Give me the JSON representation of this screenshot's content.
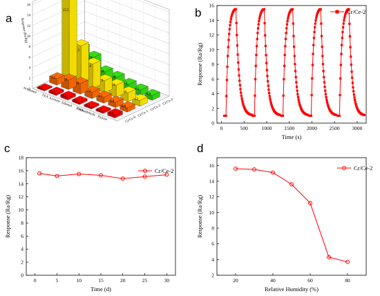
{
  "panels": {
    "a": {
      "letter": "a"
    },
    "b": {
      "letter": "b"
    },
    "c": {
      "letter": "c"
    },
    "d": {
      "letter": "d"
    }
  },
  "colors": {
    "red": "#ff0000",
    "orange": "#ff6a00",
    "yellow": "#ffe600",
    "green": "#33dd11"
  },
  "chart_data": [
    {
      "id": "a",
      "type": "bar",
      "subtype": "3d-bar",
      "zlabel": "Response (Ra/Rg)",
      "zlim": [
        0,
        16
      ],
      "zticks": [
        "0",
        "2",
        "4",
        "6",
        "8",
        "10",
        "12",
        "14",
        "16"
      ],
      "categories": [
        "N-butanol",
        "TEA",
        "Acetone",
        "Ethanol",
        "TMA",
        "Formaldehyde",
        "Xylene"
      ],
      "series": [
        {
          "name": "Cr/Ce-0",
          "color": "red",
          "values": [
            0.2,
            0.4,
            0.5,
            0.4,
            0.3,
            0.3,
            0.6
          ]
        },
        {
          "name": "Cr/Ce-1",
          "color": "orange",
          "values": [
            1.2,
            1.8,
            2.0,
            1.2,
            1.1,
            1.0,
            0.8
          ]
        },
        {
          "name": "Cr/Ce-2",
          "color": "yellow",
          "values": [
            15.5,
            7.2,
            4.6,
            2.3,
            2.3,
            1.7,
            1.1
          ]
        },
        {
          "name": "Cr/Ce-3",
          "color": "green",
          "values": [
            4.8,
            3.9,
            2.0,
            1.8,
            1.3,
            1.1,
            0.9
          ]
        }
      ],
      "bar_labels": [
        [
          "0.2",
          "0.4",
          "0.5",
          "0.4",
          "0.3",
          "0.3",
          "0.6"
        ],
        [
          "1.2",
          "1.8",
          "2.0",
          "1.2",
          "1.1",
          "1.0",
          "0.8"
        ],
        [
          "15.5",
          "7.2",
          "4.6",
          "2.3",
          "2.3",
          "1.7",
          "1.1"
        ],
        [
          "4.8",
          "3.9",
          "2.0",
          "1.8",
          "1.3",
          "1.1",
          "0.9"
        ]
      ]
    },
    {
      "id": "b",
      "type": "line",
      "xlabel": "Time (s)",
      "ylabel": "Response (Ra/Rg)",
      "xlim": [
        -100,
        3200
      ],
      "ylim": [
        0,
        16
      ],
      "xticks": [
        0,
        500,
        1000,
        1500,
        2000,
        2500,
        3000
      ],
      "yticks": [
        0,
        2,
        4,
        6,
        8,
        10,
        12,
        14,
        16
      ],
      "legend": "top-right",
      "series": [
        {
          "name": "Cr/Ce-2",
          "color": "red",
          "marker": "square",
          "cycles": [
            {
              "on": 100,
              "peak_at": 300,
              "off": 320,
              "end": 680
            },
            {
              "on": 730,
              "peak_at": 925,
              "off": 945,
              "end": 1300
            },
            {
              "on": 1360,
              "peak_at": 1555,
              "off": 1575,
              "end": 1920
            },
            {
              "on": 1985,
              "peak_at": 2175,
              "off": 2195,
              "end": 2540
            },
            {
              "on": 2610,
              "peak_at": 2800,
              "off": 2820,
              "end": 3160
            }
          ],
          "baseline": 1.0,
          "peak": 15.5
        }
      ]
    },
    {
      "id": "c",
      "type": "line",
      "xlabel": "Time (d)",
      "ylabel": "Response (Ra/Rg)",
      "xlim": [
        -2,
        32
      ],
      "ylim": [
        0,
        18
      ],
      "xticks": [
        0,
        5,
        10,
        15,
        20,
        25,
        30
      ],
      "yticks": [
        0,
        2,
        4,
        6,
        8,
        10,
        12,
        14,
        16,
        18
      ],
      "legend": "top-right",
      "series": [
        {
          "name": "Cr/Ce-2",
          "color": "red",
          "marker": "circle",
          "x": [
            1,
            5,
            10,
            15,
            20,
            25,
            30
          ],
          "y": [
            15.6,
            15.2,
            15.5,
            15.3,
            14.8,
            15.1,
            15.4
          ]
        }
      ]
    },
    {
      "id": "d",
      "type": "line",
      "xlabel": "Relative Humidity (%)",
      "ylabel": "Response (Ra/Rg)",
      "xlim": [
        10,
        90
      ],
      "ylim": [
        2,
        17
      ],
      "xticks": [
        20,
        40,
        60,
        80
      ],
      "yticks": [
        2,
        4,
        6,
        8,
        10,
        12,
        14,
        16
      ],
      "legend": "top-right",
      "series": [
        {
          "name": "Cr/Ce-2",
          "color": "red",
          "marker": "circle",
          "x": [
            20,
            30,
            40,
            50,
            60,
            70,
            80
          ],
          "y": [
            15.6,
            15.5,
            15.1,
            13.6,
            11.2,
            4.3,
            3.7
          ]
        }
      ]
    }
  ]
}
